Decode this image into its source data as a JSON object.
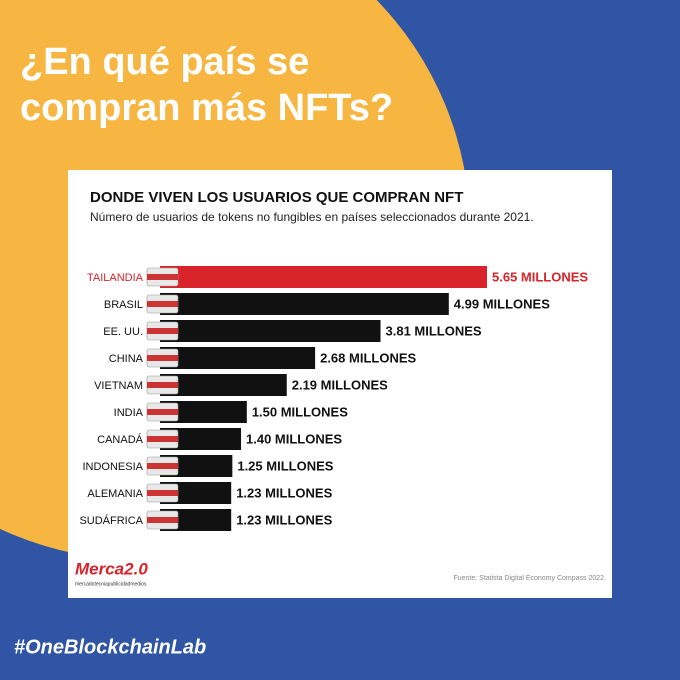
{
  "headline": [
    "¿En qué país se",
    "compran más NFTs?"
  ],
  "chart_data": {
    "type": "bar",
    "orientation": "horizontal",
    "title": "DONDE VIVEN LOS USUARIOS QUE COMPRAN NFT",
    "subtitle": "Número de usuarios de tokens no fungibles en países seleccionados durante 2021.",
    "categories": [
      "TAILANDIA",
      "BRASIL",
      "EE. UU.",
      "CHINA",
      "VIETNAM",
      "INDIA",
      "CANADÁ",
      "INDONESIA",
      "ALEMANIA",
      "SUDÁFRICA"
    ],
    "values": [
      5.65,
      4.99,
      3.81,
      2.68,
      2.19,
      1.5,
      1.4,
      1.25,
      1.23,
      1.23
    ],
    "value_labels": [
      "5.65 MILLONES",
      "4.99 MILLONES",
      "3.81 MILLONES",
      "2.68 MILLONES",
      "2.19 MILLONES",
      "1.50 MILLONES",
      "1.40 MILLONES",
      "1.25 MILLONES",
      "1.23 MILLONES",
      "1.23 MILLONES"
    ],
    "colors": [
      "#d8232a",
      "#111111",
      "#111111",
      "#111111",
      "#111111",
      "#111111",
      "#111111",
      "#111111",
      "#111111",
      "#111111"
    ]
  },
  "source": "Fuente: Statista Digital Economy Compass 2022.",
  "logo": {
    "name": "Merca2.0",
    "tagline": "mercadotecniapublicidadmedios"
  },
  "hashtag": "#OneBlockchainLab"
}
